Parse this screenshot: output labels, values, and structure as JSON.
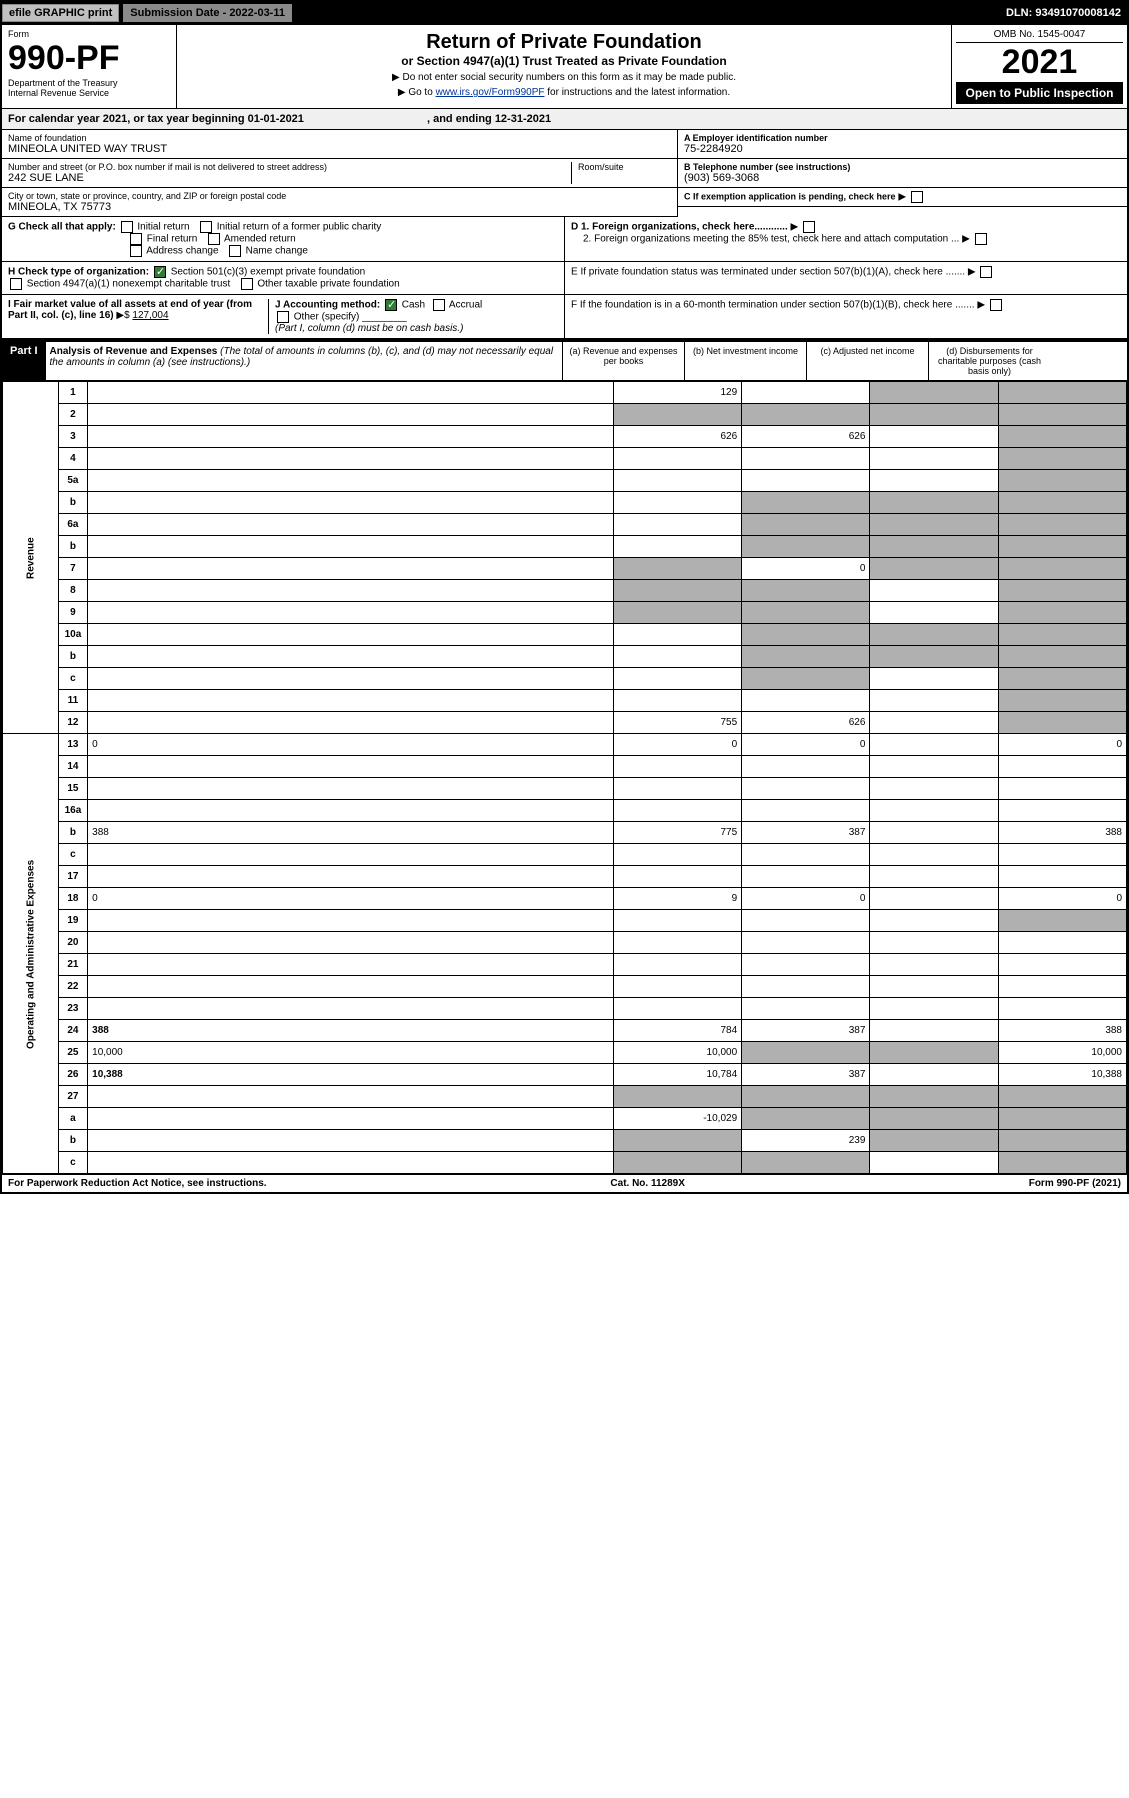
{
  "topbar": {
    "efile": "efile GRAPHIC print",
    "submission_label": "Submission Date - 2022-03-11",
    "dln": "DLN: 93491070008142"
  },
  "header": {
    "form_label": "Form",
    "form_number": "990-PF",
    "dept": "Department of the Treasury",
    "irs": "Internal Revenue Service",
    "title": "Return of Private Foundation",
    "subtitle": "or Section 4947(a)(1) Trust Treated as Private Foundation",
    "note1": "▶ Do not enter social security numbers on this form as it may be made public.",
    "note2_pre": "▶ Go to ",
    "note2_link": "www.irs.gov/Form990PF",
    "note2_post": " for instructions and the latest information.",
    "omb": "OMB No. 1545-0047",
    "year": "2021",
    "open_public": "Open to Public Inspection"
  },
  "calyear": {
    "text": "For calendar year 2021, or tax year beginning 01-01-2021",
    "ending": ", and ending 12-31-2021"
  },
  "info": {
    "name_label": "Name of foundation",
    "name": "MINEOLA UNITED WAY TRUST",
    "addr_label": "Number and street (or P.O. box number if mail is not delivered to street address)",
    "addr": "242 SUE LANE",
    "room_label": "Room/suite",
    "city_label": "City or town, state or province, country, and ZIP or foreign postal code",
    "city": "MINEOLA, TX  75773",
    "ein_label": "A Employer identification number",
    "ein": "75-2284920",
    "tel_label": "B Telephone number (see instructions)",
    "tel": "(903) 569-3068",
    "c_label": "C If exemption application is pending, check here",
    "d1_label": "D 1. Foreign organizations, check here............",
    "d2_label": "2. Foreign organizations meeting the 85% test, check here and attach computation ...",
    "e_label": "E  If private foundation status was terminated under section 507(b)(1)(A), check here .......",
    "f_label": "F  If the foundation is in a 60-month termination under section 507(b)(1)(B), check here .......",
    "g_label": "G Check all that apply:",
    "g_initial": "Initial return",
    "g_initial_former": "Initial return of a former public charity",
    "g_final": "Final return",
    "g_amended": "Amended return",
    "g_addr": "Address change",
    "g_name": "Name change",
    "h_label": "H Check type of organization:",
    "h_501c3": "Section 501(c)(3) exempt private foundation",
    "h_4947": "Section 4947(a)(1) nonexempt charitable trust",
    "h_other_tax": "Other taxable private foundation",
    "i_label": "I Fair market value of all assets at end of year (from Part II, col. (c), line 16)",
    "i_val": "127,004",
    "j_label": "J Accounting method:",
    "j_cash": "Cash",
    "j_accrual": "Accrual",
    "j_other": "Other (specify)",
    "j_note": "(Part I, column (d) must be on cash basis.)"
  },
  "part1": {
    "label": "Part I",
    "title": "Analysis of Revenue and Expenses",
    "title_note": " (The total of amounts in columns (b), (c), and (d) may not necessarily equal the amounts in column (a) (see instructions).)",
    "col_a": "(a)   Revenue and expenses per books",
    "col_b": "(b)   Net investment income",
    "col_c": "(c)   Adjusted net income",
    "col_d": "(d)   Disbursements for charitable purposes (cash basis only)"
  },
  "side": {
    "revenue": "Revenue",
    "expenses": "Operating and Administrative Expenses"
  },
  "rows": [
    {
      "n": "1",
      "d": "",
      "a": "129",
      "b": "",
      "c": "",
      "shade_c": true,
      "shade_d": true
    },
    {
      "n": "2",
      "d": "",
      "a": "",
      "b": "",
      "c": "",
      "shade_all": true
    },
    {
      "n": "3",
      "d": "",
      "a": "626",
      "b": "626",
      "c": "",
      "shade_d": true
    },
    {
      "n": "4",
      "d": "",
      "a": "",
      "b": "",
      "c": "",
      "shade_d": true
    },
    {
      "n": "5a",
      "d": "",
      "a": "",
      "b": "",
      "c": "",
      "shade_d": true
    },
    {
      "n": "b",
      "d": "",
      "a": "",
      "b": "",
      "c": "",
      "shade_bcd": true
    },
    {
      "n": "6a",
      "d": "",
      "a": "",
      "b": "",
      "c": "",
      "shade_bcd": true
    },
    {
      "n": "b",
      "d": "",
      "a": "",
      "b": "",
      "c": "",
      "shade_bcd": true
    },
    {
      "n": "7",
      "d": "",
      "a": "",
      "b": "0",
      "c": "",
      "shade_a": true,
      "shade_cd": true
    },
    {
      "n": "8",
      "d": "",
      "a": "",
      "b": "",
      "c": "",
      "shade_ab": true,
      "shade_d": true
    },
    {
      "n": "9",
      "d": "",
      "a": "",
      "b": "",
      "c": "",
      "shade_ab": true,
      "shade_d": true
    },
    {
      "n": "10a",
      "d": "",
      "a": "",
      "b": "",
      "c": "",
      "shade_bcd": true
    },
    {
      "n": "b",
      "d": "",
      "a": "",
      "b": "",
      "c": "",
      "shade_bcd": true
    },
    {
      "n": "c",
      "d": "",
      "a": "",
      "b": "",
      "c": "",
      "shade_b": true,
      "shade_d": true
    },
    {
      "n": "11",
      "d": "",
      "a": "",
      "b": "",
      "c": "",
      "shade_d": true
    },
    {
      "n": "12",
      "d": "",
      "a": "755",
      "b": "626",
      "c": "",
      "bold": true,
      "shade_d": true
    },
    {
      "n": "13",
      "d": "0",
      "a": "0",
      "b": "0",
      "c": ""
    },
    {
      "n": "14",
      "d": "",
      "a": "",
      "b": "",
      "c": ""
    },
    {
      "n": "15",
      "d": "",
      "a": "",
      "b": "",
      "c": ""
    },
    {
      "n": "16a",
      "d": "",
      "a": "",
      "b": "",
      "c": ""
    },
    {
      "n": "b",
      "d": "388",
      "a": "775",
      "b": "387",
      "c": ""
    },
    {
      "n": "c",
      "d": "",
      "a": "",
      "b": "",
      "c": ""
    },
    {
      "n": "17",
      "d": "",
      "a": "",
      "b": "",
      "c": ""
    },
    {
      "n": "18",
      "d": "0",
      "a": "9",
      "b": "0",
      "c": ""
    },
    {
      "n": "19",
      "d": "",
      "a": "",
      "b": "",
      "c": "",
      "shade_d": true
    },
    {
      "n": "20",
      "d": "",
      "a": "",
      "b": "",
      "c": ""
    },
    {
      "n": "21",
      "d": "",
      "a": "",
      "b": "",
      "c": ""
    },
    {
      "n": "22",
      "d": "",
      "a": "",
      "b": "",
      "c": ""
    },
    {
      "n": "23",
      "d": "",
      "a": "",
      "b": "",
      "c": ""
    },
    {
      "n": "24",
      "d": "388",
      "a": "784",
      "b": "387",
      "c": "",
      "bold": true
    },
    {
      "n": "25",
      "d": "10,000",
      "a": "10,000",
      "b": "",
      "c": "",
      "shade_bc": true
    },
    {
      "n": "26",
      "d": "10,388",
      "a": "10,784",
      "b": "387",
      "c": "",
      "bold": true
    },
    {
      "n": "27",
      "d": "",
      "a": "",
      "b": "",
      "c": "",
      "shade_all": true
    },
    {
      "n": "a",
      "d": "",
      "a": "-10,029",
      "b": "",
      "c": "",
      "bold": true,
      "shade_bcd": true
    },
    {
      "n": "b",
      "d": "",
      "a": "",
      "b": "239",
      "c": "",
      "bold": true,
      "shade_a": true,
      "shade_cd": true
    },
    {
      "n": "c",
      "d": "",
      "a": "",
      "b": "",
      "c": "",
      "bold": true,
      "shade_ab": true,
      "shade_d": true
    }
  ],
  "footer": {
    "left": "For Paperwork Reduction Act Notice, see instructions.",
    "mid": "Cat. No. 11289X",
    "right": "Form 990-PF (2021)"
  }
}
